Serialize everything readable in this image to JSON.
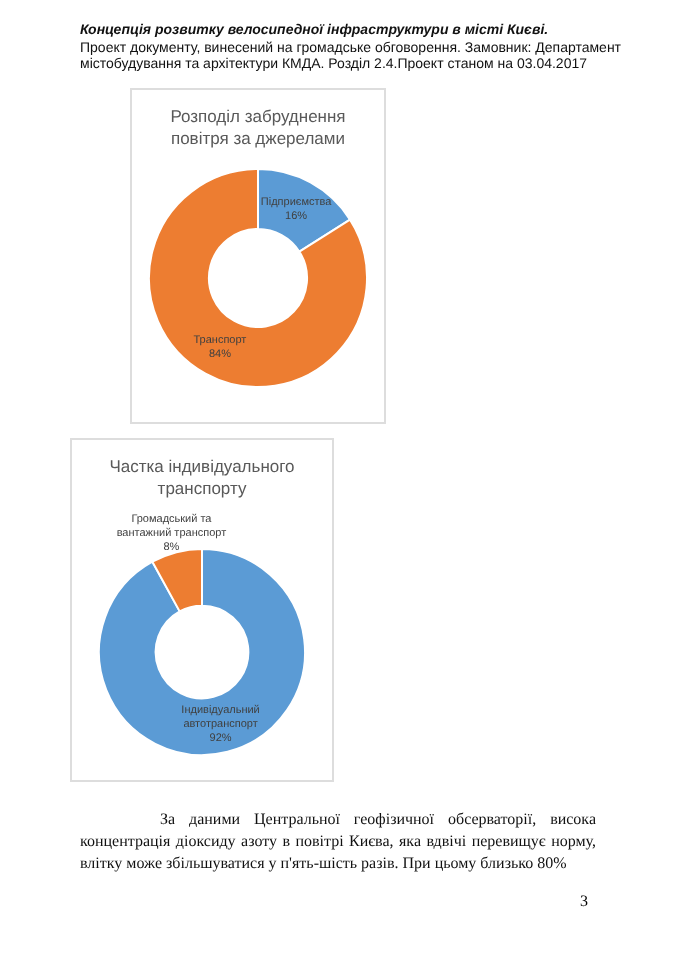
{
  "chart_data": [
    {
      "type": "donut",
      "title": "Розподіл забруднення повітря за джерелами",
      "categories": [
        "Підприємства",
        "Транспорт"
      ],
      "values": [
        16,
        84
      ],
      "colors": [
        "#5b9bd5",
        "#ed7d31"
      ],
      "value_labels": [
        "16%",
        "84%"
      ],
      "legend": false,
      "annotations": [
        "Концепція розвитку велосипедної інфраструктури в місті Києві.",
        "Проект документу, винесений на громадське обговорення. Замовник: Департамент містобудування та архітектури КМДА. Розділ 2.4.Проект станом на 03.04.2017"
      ]
    },
    {
      "type": "donut",
      "title": "Частка індивідуального транспорту",
      "categories": [
        "Індивідуальний автотранспорт",
        "Громадський та вантажний транспорт"
      ],
      "values": [
        92,
        8
      ],
      "colors": [
        "#5b9bd5",
        "#ed7d31"
      ],
      "value_labels": [
        "92%",
        "8%"
      ],
      "legend": false,
      "annotations": [
        "За даними Центральної геофізичної обсерваторії, висока концентрація діоксиду азоту в повітрі Києва, яка вдвічі перевищує норму, влітку може збільшуватися у п'ять-шість разів. При цьому близько 80%",
        "3"
      ]
    }
  ]
}
